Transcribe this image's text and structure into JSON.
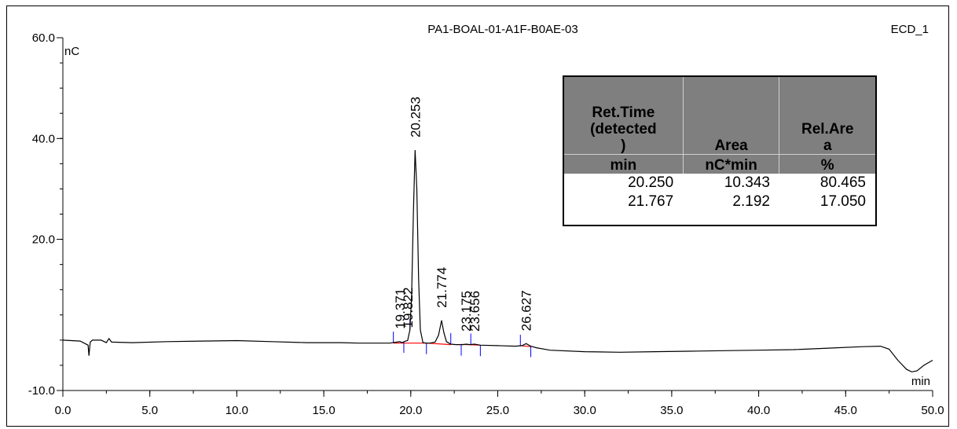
{
  "chart_data": {
    "type": "line",
    "title": "PA1-BOAL-01-A1F-B0AE-03",
    "detector": "ECD_1",
    "ylabel": "nC",
    "xlabel": "min",
    "xlim": [
      0,
      50
    ],
    "ylim": [
      -10,
      60
    ],
    "x_ticks": [
      "0.0",
      "5.0",
      "10.0",
      "15.0",
      "20.0",
      "25.0",
      "30.0",
      "35.0",
      "40.0",
      "45.0",
      "50.0"
    ],
    "y_ticks": [
      "60.0",
      "40.0",
      "20.0",
      "-10.0"
    ],
    "grid": false,
    "series": [
      {
        "x": [
          0.0,
          1.0,
          1.45,
          1.5,
          1.57,
          1.7,
          2.2,
          2.5,
          2.65,
          2.8,
          4.0,
          6.0,
          8.0,
          10.0,
          12.0,
          14.0,
          16.0,
          17.0,
          18.0,
          18.8,
          19.2,
          19.37,
          19.5,
          19.7,
          19.82,
          19.95,
          20.05,
          20.15,
          20.25,
          20.35,
          20.45,
          20.55,
          20.7,
          20.9,
          21.1,
          21.4,
          21.6,
          21.77,
          21.9,
          22.05,
          22.3,
          22.6,
          23.0,
          23.18,
          23.4,
          23.66,
          24.0,
          25.0,
          26.0,
          26.4,
          26.63,
          26.9,
          27.2,
          28.0,
          30.0,
          32.0,
          34.0,
          36.0,
          38.0,
          40.0,
          42.0,
          44.0,
          46.0,
          47.0,
          47.5,
          48.0,
          48.5,
          48.8,
          49.1,
          49.5,
          50.0
        ],
        "y": [
          0.0,
          -0.2,
          -1.0,
          -3.1,
          -0.4,
          0.0,
          0.0,
          -0.5,
          0.3,
          -0.4,
          -0.5,
          -0.3,
          -0.2,
          -0.1,
          -0.3,
          -0.5,
          -0.5,
          -0.6,
          -0.6,
          -0.6,
          -0.4,
          -0.3,
          -0.5,
          -0.2,
          -0.1,
          2.0,
          9.0,
          25.0,
          37.7,
          30.0,
          12.0,
          2.0,
          -0.5,
          -0.6,
          -0.6,
          -0.4,
          1.0,
          3.9,
          1.5,
          -0.3,
          -0.8,
          -0.9,
          -0.9,
          -0.8,
          -0.9,
          -0.8,
          -1.0,
          -1.1,
          -1.2,
          -1.1,
          -0.7,
          -1.2,
          -1.5,
          -2.0,
          -2.3,
          -2.4,
          -2.3,
          -2.2,
          -2.1,
          -2.0,
          -1.9,
          -1.6,
          -1.3,
          -1.2,
          -1.8,
          -4.0,
          -5.8,
          -6.3,
          -6.1,
          -5.0,
          -4.0
        ]
      }
    ],
    "peaks": [
      {
        "label": "19.371",
        "x": 19.37,
        "y": -0.3
      },
      {
        "label": "19.822",
        "x": 19.82,
        "y": -0.1
      },
      {
        "label": "20.253",
        "x": 20.25,
        "y": 37.7
      },
      {
        "label": "21.774",
        "x": 21.77,
        "y": 3.9
      },
      {
        "label": "23.175",
        "x": 23.18,
        "y": -0.8
      },
      {
        "label": "23.656",
        "x": 23.66,
        "y": -0.8
      },
      {
        "label": "26.627",
        "x": 26.63,
        "y": -0.7
      }
    ],
    "baseline_segments": [
      {
        "x": [
          19.0,
          20.9
        ],
        "y": [
          -0.6,
          -0.6
        ]
      },
      {
        "x": [
          20.9,
          22.3
        ],
        "y": [
          -0.6,
          -0.9
        ]
      },
      {
        "x": [
          22.9,
          24.0
        ],
        "y": [
          -0.85,
          -1.0
        ]
      },
      {
        "x": [
          26.3,
          26.9
        ],
        "y": [
          -1.1,
          -1.3
        ]
      }
    ],
    "integration_marks": [
      19.0,
      19.6,
      19.95,
      20.9,
      22.3,
      22.9,
      23.45,
      24.0,
      26.3,
      26.9
    ],
    "table": {
      "headers": [
        [
          "Ret.Time",
          "(detected",
          ")",
          "min"
        ],
        [
          "Area",
          "nC*min"
        ],
        [
          "Rel.Are",
          "a",
          "%"
        ]
      ],
      "rows": [
        [
          "20.250",
          "10.343",
          "80.465"
        ],
        [
          "21.767",
          "2.192",
          "17.050"
        ]
      ]
    },
    "colors": {
      "trace": "#000000",
      "baseline": "#ff0000",
      "marks": "#0000ff",
      "table_header": "#7f7f7f"
    }
  }
}
